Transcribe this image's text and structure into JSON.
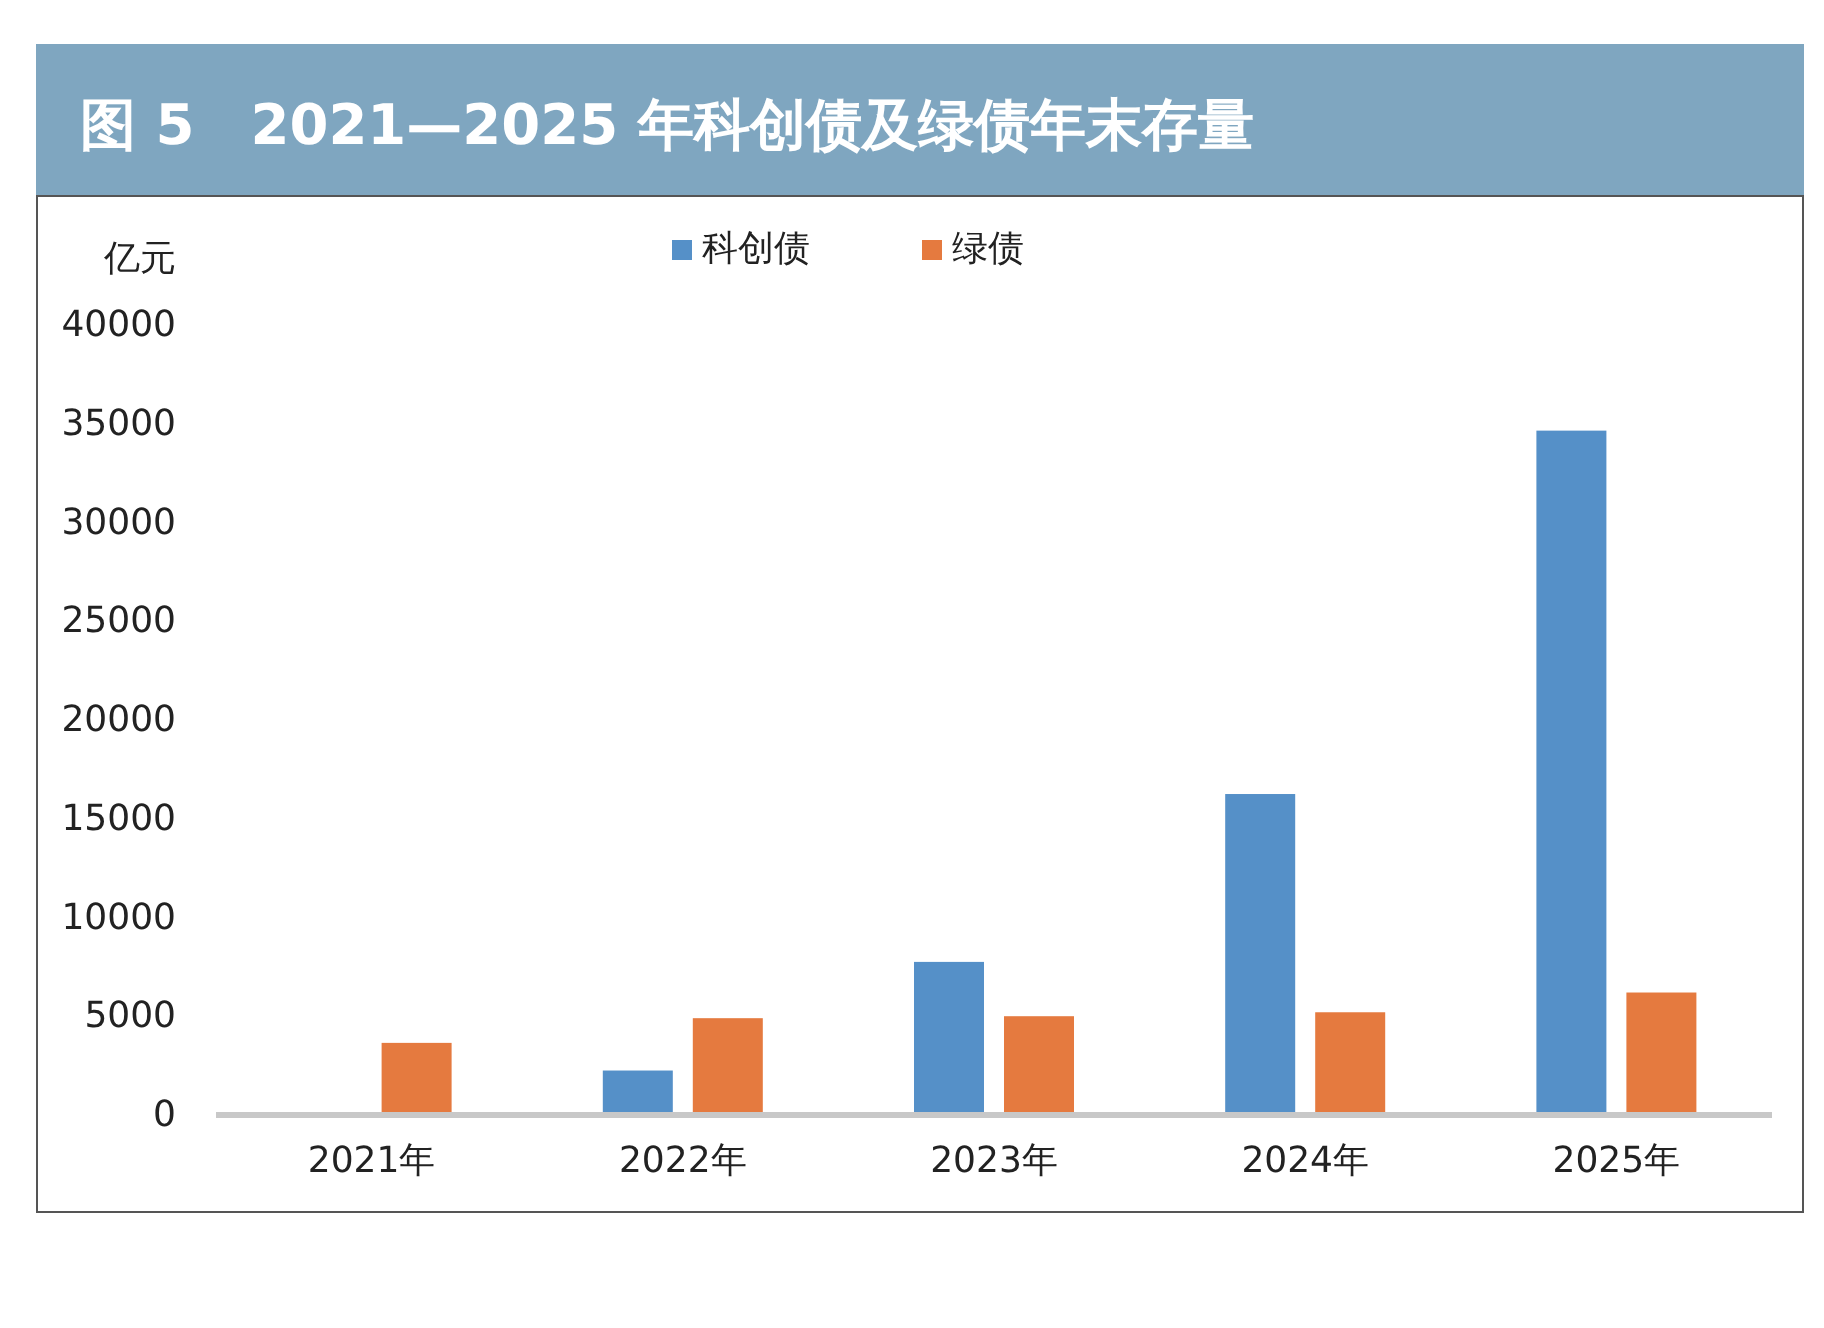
{
  "chart_data": {
    "type": "bar",
    "title": "图 5　2021—2025 年科创债及绿债年末存量",
    "ylabel": "亿元",
    "categories": [
      "2021年",
      "2022年",
      "2023年",
      "2024年",
      "2025年"
    ],
    "series": [
      {
        "name": "科创债",
        "color": "#5590c8",
        "values": [
          null,
          2100,
          7600,
          16100,
          34500
        ]
      },
      {
        "name": "绿债",
        "color": "#e57a3f",
        "values": [
          3500,
          4750,
          4850,
          5050,
          6050
        ]
      }
    ],
    "ylim": [
      0,
      40000
    ],
    "yticks": [
      0,
      5000,
      10000,
      15000,
      20000,
      25000,
      30000,
      35000,
      40000
    ],
    "legend": "top"
  }
}
